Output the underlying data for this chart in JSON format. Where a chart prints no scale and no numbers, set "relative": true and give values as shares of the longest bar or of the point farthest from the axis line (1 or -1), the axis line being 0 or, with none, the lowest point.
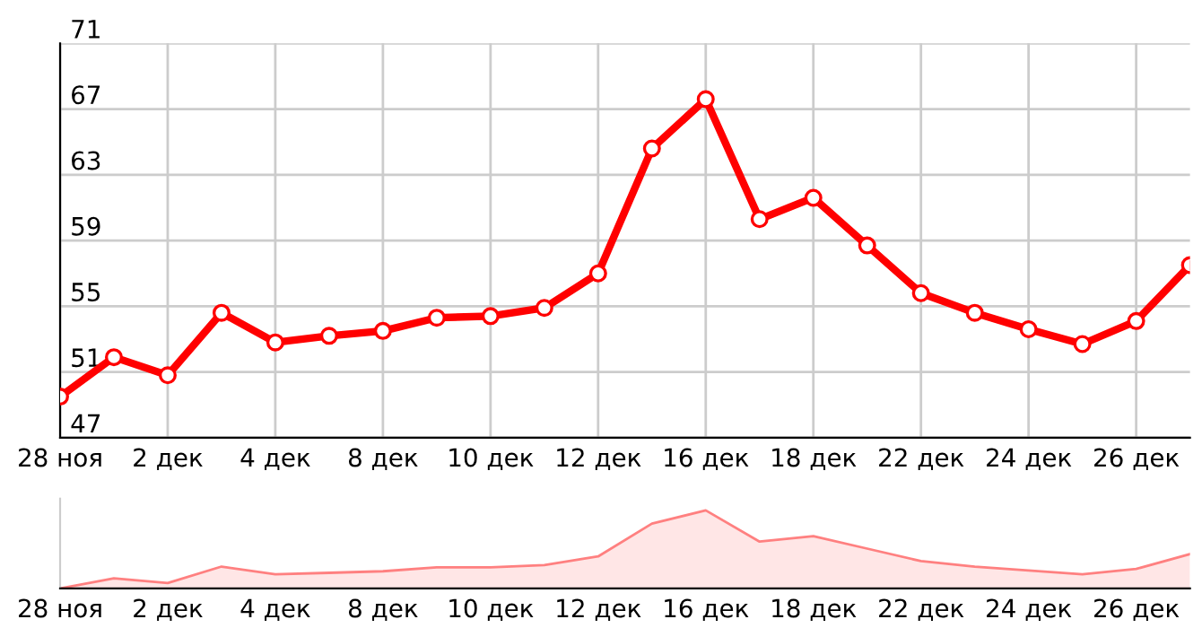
{
  "chart_data": [
    {
      "type": "line",
      "categories": [
        "28 ноя",
        null,
        "2 дек",
        null,
        "4 дек",
        null,
        "8 дек",
        null,
        "10 дек",
        null,
        "12 дек",
        null,
        "16 дек",
        null,
        "18 дек",
        null,
        "22 дек",
        null,
        "24 дек",
        null,
        "26 дек",
        null
      ],
      "series": [
        {
          "color": "#ff0000",
          "values": [
            49.5,
            51.9,
            50.8,
            54.6,
            52.8,
            53.2,
            53.5,
            54.3,
            54.4,
            54.9,
            57.0,
            64.6,
            67.6,
            60.3,
            61.6,
            58.7,
            55.8,
            54.6,
            53.6,
            52.7,
            54.1,
            57.5
          ]
        }
      ],
      "ylim": [
        47,
        71
      ],
      "yticks": [
        47,
        51,
        55,
        59,
        63,
        67,
        71
      ],
      "grid": true,
      "marker": "circle",
      "line_style": "solid",
      "legend": false
    },
    {
      "type": "area",
      "relative": true,
      "categories": [
        "28 ноя",
        null,
        "2 дек",
        null,
        "4 дек",
        null,
        "8 дек",
        null,
        "10 дек",
        null,
        "12 дек",
        null,
        "16 дек",
        null,
        "18 дек",
        null,
        "22 дек",
        null,
        "24 дек",
        null,
        "26 дек",
        null
      ],
      "series": [
        {
          "color": "#ff8080",
          "values": [
            0,
            0.13,
            0.07,
            0.28,
            0.18,
            0.2,
            0.22,
            0.27,
            0.27,
            0.3,
            0.41,
            0.83,
            1,
            0.6,
            0.67,
            0.51,
            0.35,
            0.28,
            0.23,
            0.18,
            0.25,
            0.44
          ]
        }
      ],
      "grid": false,
      "legend": false
    }
  ]
}
